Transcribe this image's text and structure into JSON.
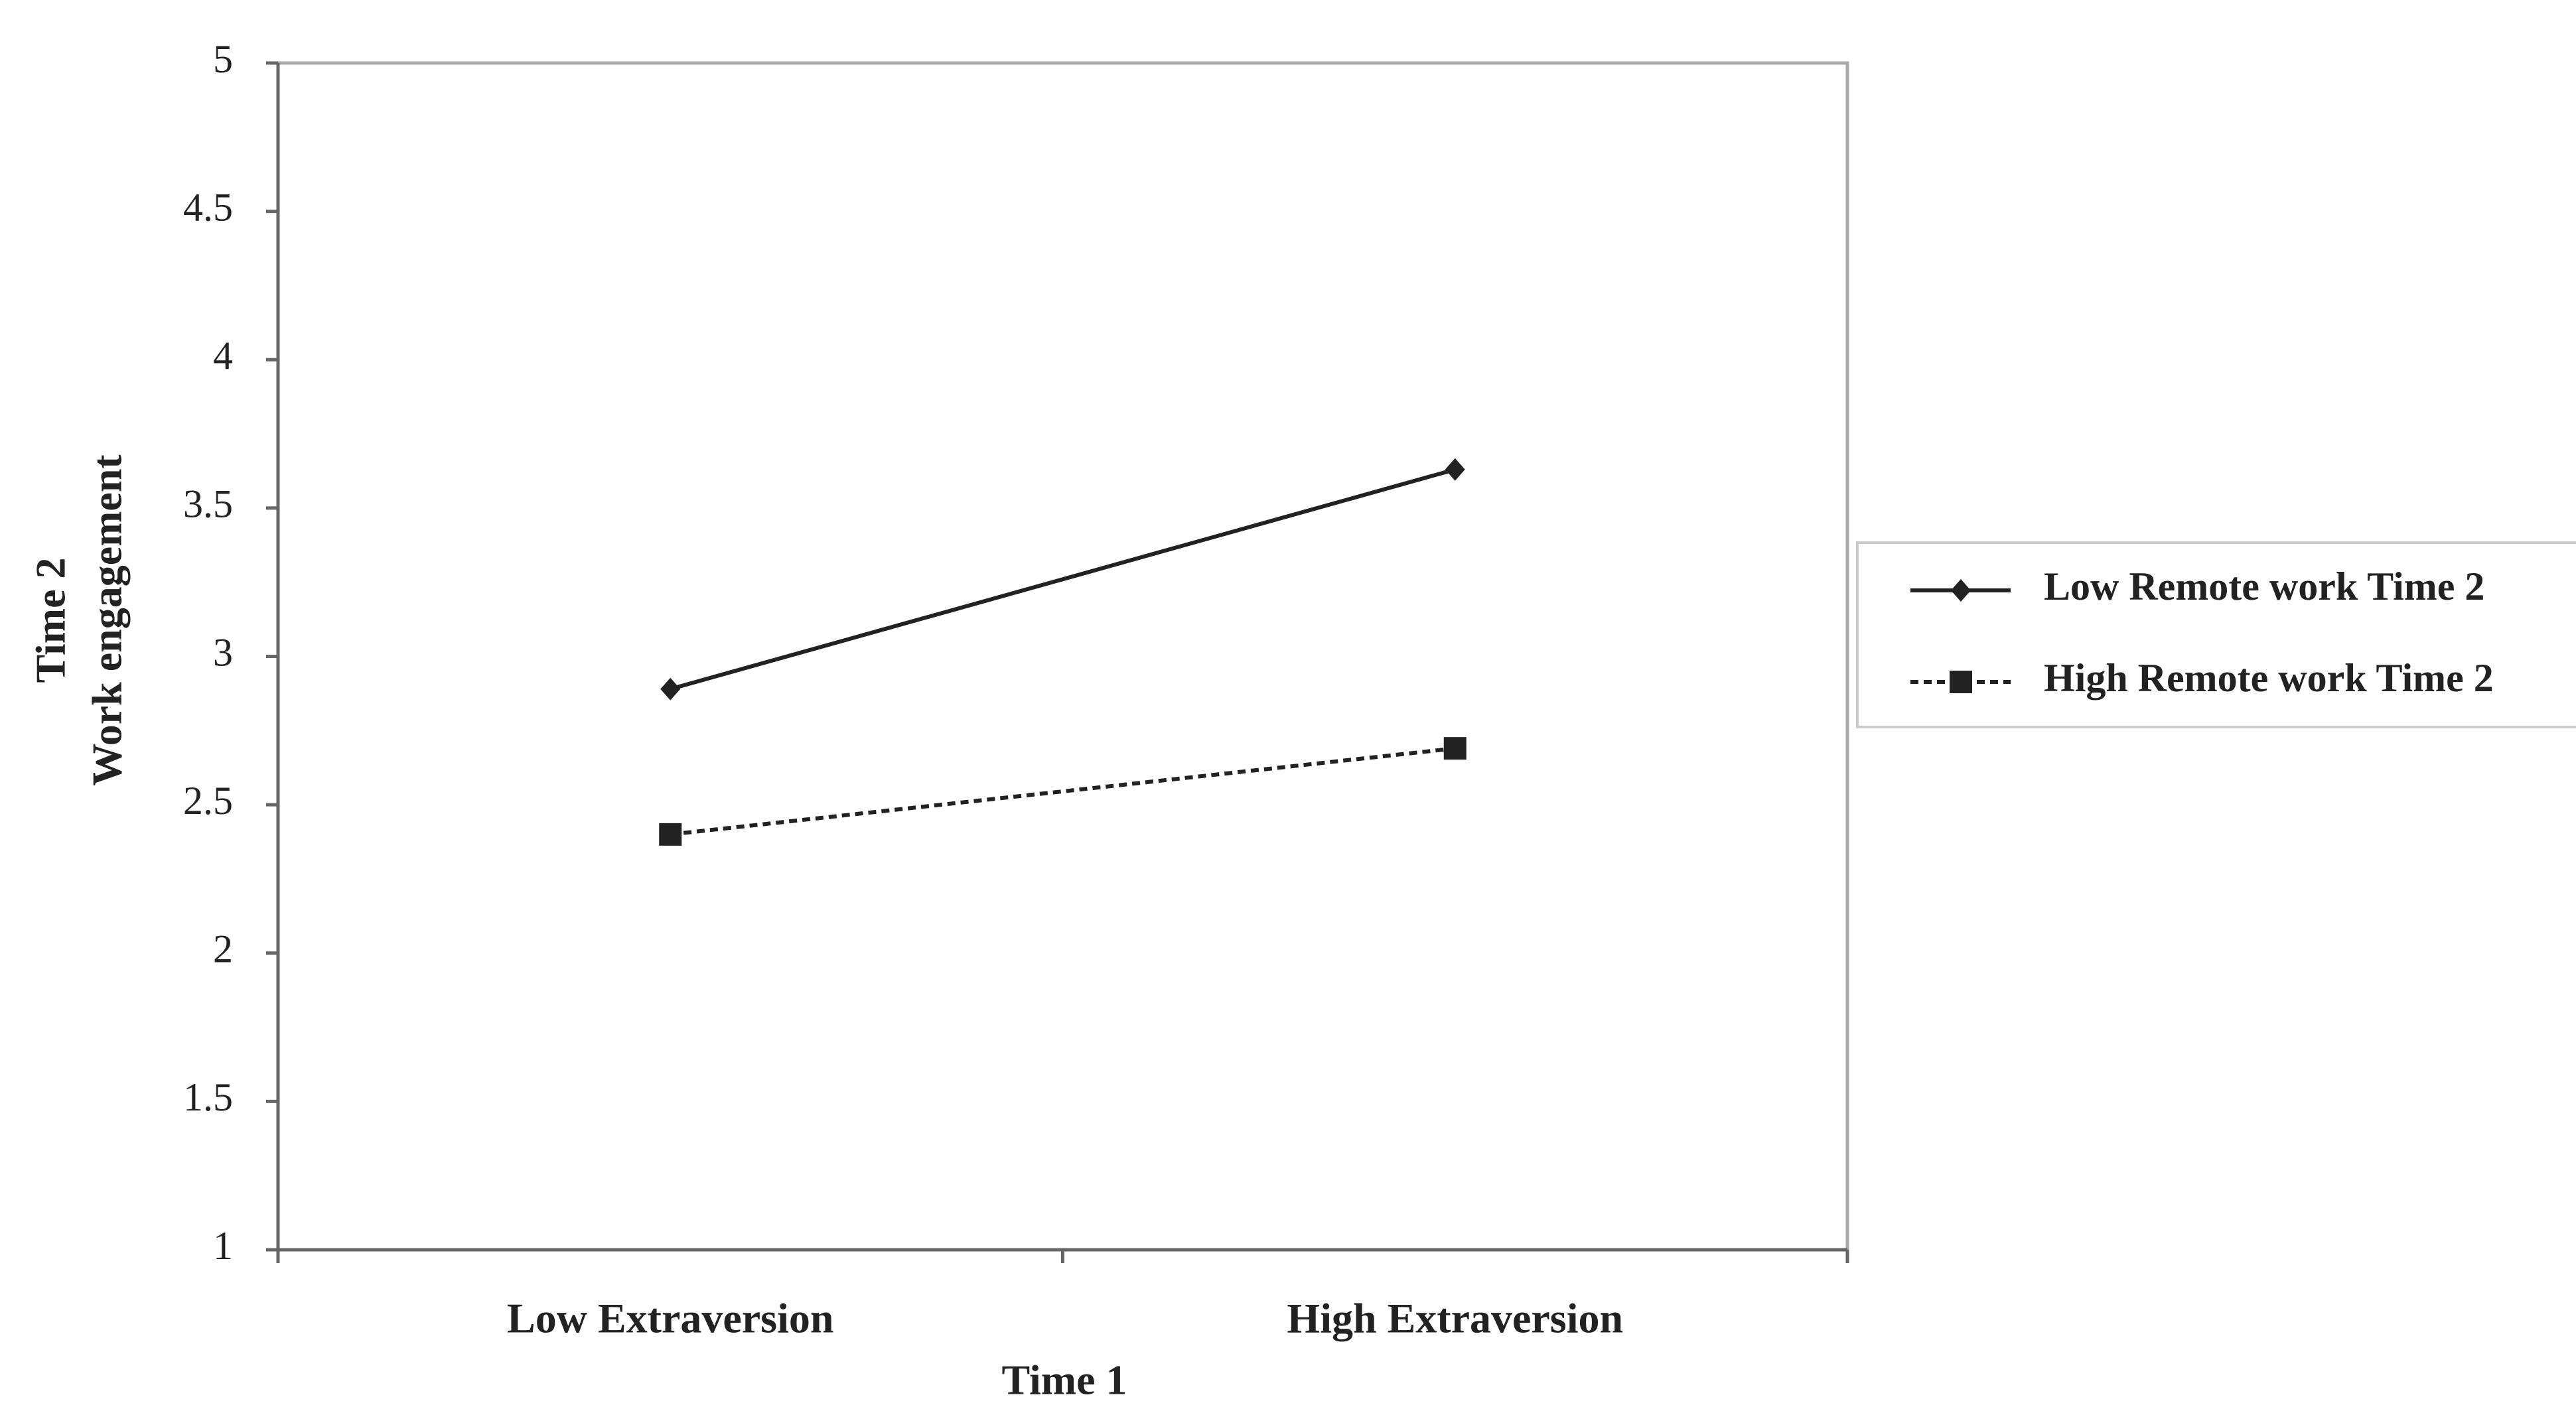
{
  "chart_data": {
    "type": "line",
    "y_label": [
      "Time 2",
      "Work engagement"
    ],
    "x_label": "Time 1",
    "categories": [
      "Low Extraversion",
      "High Extraversion"
    ],
    "series": [
      {
        "name": "Low Remote work Time 2",
        "color": "#222222",
        "marker": "diamond",
        "dash": "solid",
        "values": [
          2.89,
          3.63
        ]
      },
      {
        "name": "High Remote work Time 2",
        "color": "#222222",
        "marker": "square",
        "dash": "dotted",
        "values": [
          2.4,
          2.69
        ]
      }
    ],
    "ylim": [
      1,
      5
    ],
    "yticks": [
      1,
      1.5,
      2,
      2.5,
      3,
      3.5,
      4,
      4.5,
      5
    ],
    "grid": false,
    "legend": "right"
  }
}
